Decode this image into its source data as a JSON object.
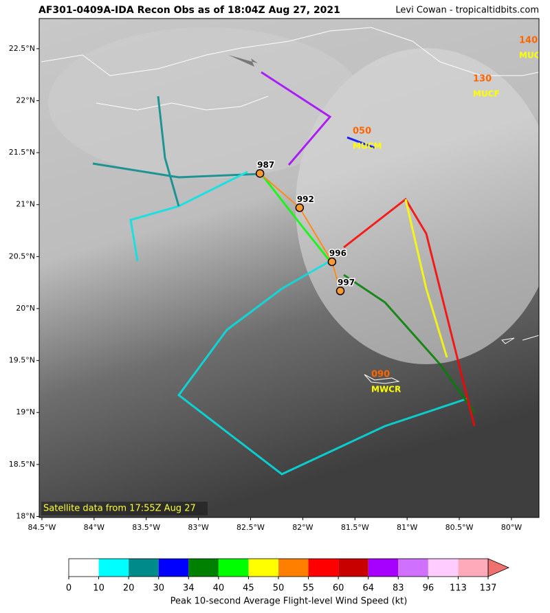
{
  "header": {
    "title": "AF301-0409A-IDA Recon Obs as of 18:04Z Aug 27, 2021",
    "credit": "Levi Cowan - tropicaltidbits.com"
  },
  "map": {
    "lonlim": [
      -84.526,
      -79.736
    ],
    "latlim": [
      17.99,
      22.79
    ],
    "lon_ticks": [
      {
        "value": -84.5,
        "label": "84.5°W"
      },
      {
        "value": -84,
        "label": "84°W"
      },
      {
        "value": -83.5,
        "label": "83.5°W"
      },
      {
        "value": -83,
        "label": "83°W"
      },
      {
        "value": -82.5,
        "label": "82.5°W"
      },
      {
        "value": -82,
        "label": "82°W"
      },
      {
        "value": -81.5,
        "label": "81.5°W"
      },
      {
        "value": -81,
        "label": "81°W"
      },
      {
        "value": -80.5,
        "label": "80.5°W"
      },
      {
        "value": -80,
        "label": "80°W"
      }
    ],
    "lat_ticks": [
      {
        "value": 18,
        "label": "18°N"
      },
      {
        "value": 18.5,
        "label": "18.5°N"
      },
      {
        "value": 19,
        "label": "19°N"
      },
      {
        "value": 19.5,
        "label": "19.5°N"
      },
      {
        "value": 20,
        "label": "20°N"
      },
      {
        "value": 20.5,
        "label": "20.5°N"
      },
      {
        "value": 21,
        "label": "21°N"
      },
      {
        "value": 21.5,
        "label": "21.5°N"
      },
      {
        "value": 22,
        "label": "22°N"
      },
      {
        "value": 22.5,
        "label": "22.5°N"
      }
    ],
    "grid": true,
    "fixes": [
      {
        "label": "987",
        "lon": -82.41,
        "lat": 21.3
      },
      {
        "label": "992",
        "lon": -82.03,
        "lat": 20.97
      },
      {
        "label": "996",
        "lon": -81.72,
        "lat": 20.45
      },
      {
        "label": "997",
        "lon": -81.64,
        "lat": 20.17
      }
    ],
    "stations": [
      {
        "value": "140",
        "id": "MUCC"
      },
      {
        "value": "130",
        "id": "MUCF"
      },
      {
        "value": "050",
        "id": "MUCM"
      },
      {
        "value": "090",
        "id": "MWCR"
      }
    ],
    "satellite_note": "Satellite data from 17:55Z Aug 27"
  },
  "colorbar": {
    "label": "Peak 10-second Average Flight-level Wind Speed (kt)",
    "bounds": [
      0,
      10,
      20,
      30,
      34,
      40,
      45,
      50,
      55,
      60,
      64,
      83,
      96,
      113,
      137
    ],
    "colors": [
      "#ffffff",
      "#00ffff",
      "#008b8b",
      "#0000ff",
      "#008000",
      "#00ff00",
      "#ffff00",
      "#ff7f00",
      "#ff0000",
      "#c80000",
      "#a600ff",
      "#d070ff",
      "#ffccff",
      "#ffaabb"
    ],
    "extend_color": "#f07070"
  }
}
